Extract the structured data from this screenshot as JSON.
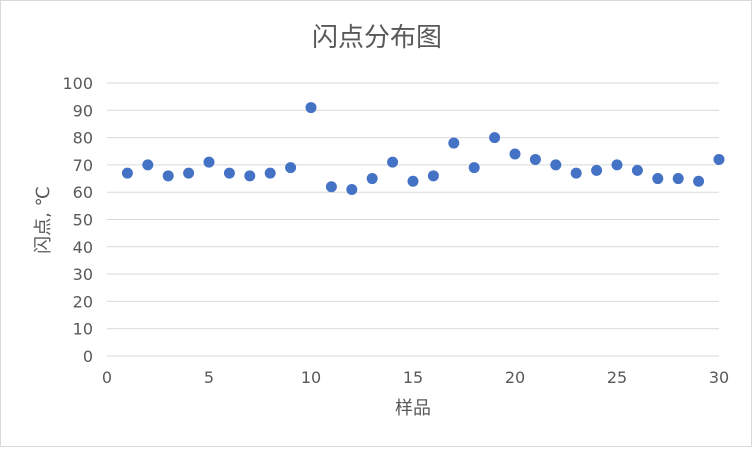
{
  "chart_data": {
    "type": "scatter",
    "title": "闪点分布图",
    "xlabel": "样品",
    "ylabel": "闪点, ℃",
    "xlim": [
      0,
      30
    ],
    "ylim": [
      0,
      100
    ],
    "x_ticks": [
      0,
      5,
      10,
      15,
      20,
      25,
      30
    ],
    "y_ticks": [
      0,
      10,
      20,
      30,
      40,
      50,
      60,
      70,
      80,
      90,
      100
    ],
    "x_tick_labels": [
      "0",
      "5",
      "10",
      "15",
      "20",
      "25",
      "30"
    ],
    "y_tick_labels": [
      "0",
      "10",
      "20",
      "30",
      "40",
      "50",
      "60",
      "70",
      "80",
      "90",
      "100"
    ],
    "grid": "horizontal",
    "legend": "none",
    "marker_color": "#4472c4",
    "series": [
      {
        "x": [
          1,
          2,
          3,
          4,
          5,
          6,
          7,
          8,
          9,
          10,
          11,
          12,
          13,
          14,
          15,
          16,
          17,
          18,
          19,
          20,
          21,
          22,
          23,
          24,
          25,
          26,
          27,
          28,
          29,
          30
        ],
        "y": [
          67,
          70,
          66,
          67,
          71,
          67,
          66,
          67,
          69,
          91,
          62,
          61,
          65,
          71,
          64,
          66,
          78,
          69,
          80,
          74,
          72,
          70,
          67,
          68,
          70,
          68,
          65,
          65,
          64,
          72
        ]
      }
    ]
  }
}
